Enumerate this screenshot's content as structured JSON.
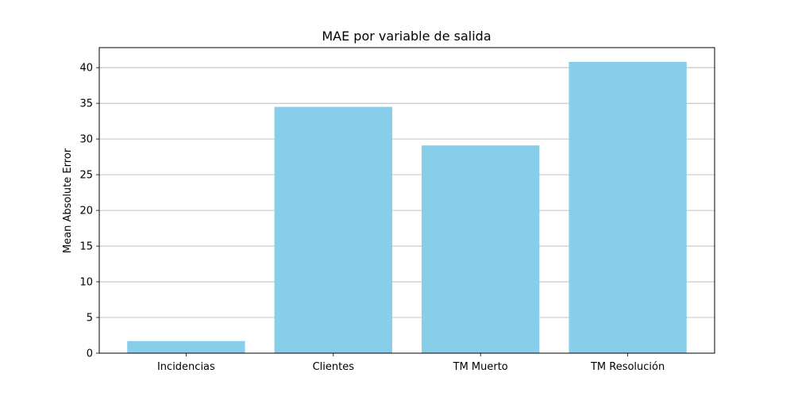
{
  "chart_data": {
    "type": "bar",
    "title": "MAE por variable de salida",
    "xlabel": "",
    "ylabel": "Mean Absolute Error",
    "categories": [
      "Incidencias",
      "Clientes",
      "TM Muerto",
      "TM Resolución"
    ],
    "values": [
      1.7,
      34.5,
      29.1,
      40.8
    ],
    "ylim": [
      0,
      42.8
    ],
    "yticks": [
      0,
      5,
      10,
      15,
      20,
      25,
      30,
      35,
      40
    ],
    "grid": "y",
    "bar_color": "#87ceeb",
    "legend": "none"
  }
}
